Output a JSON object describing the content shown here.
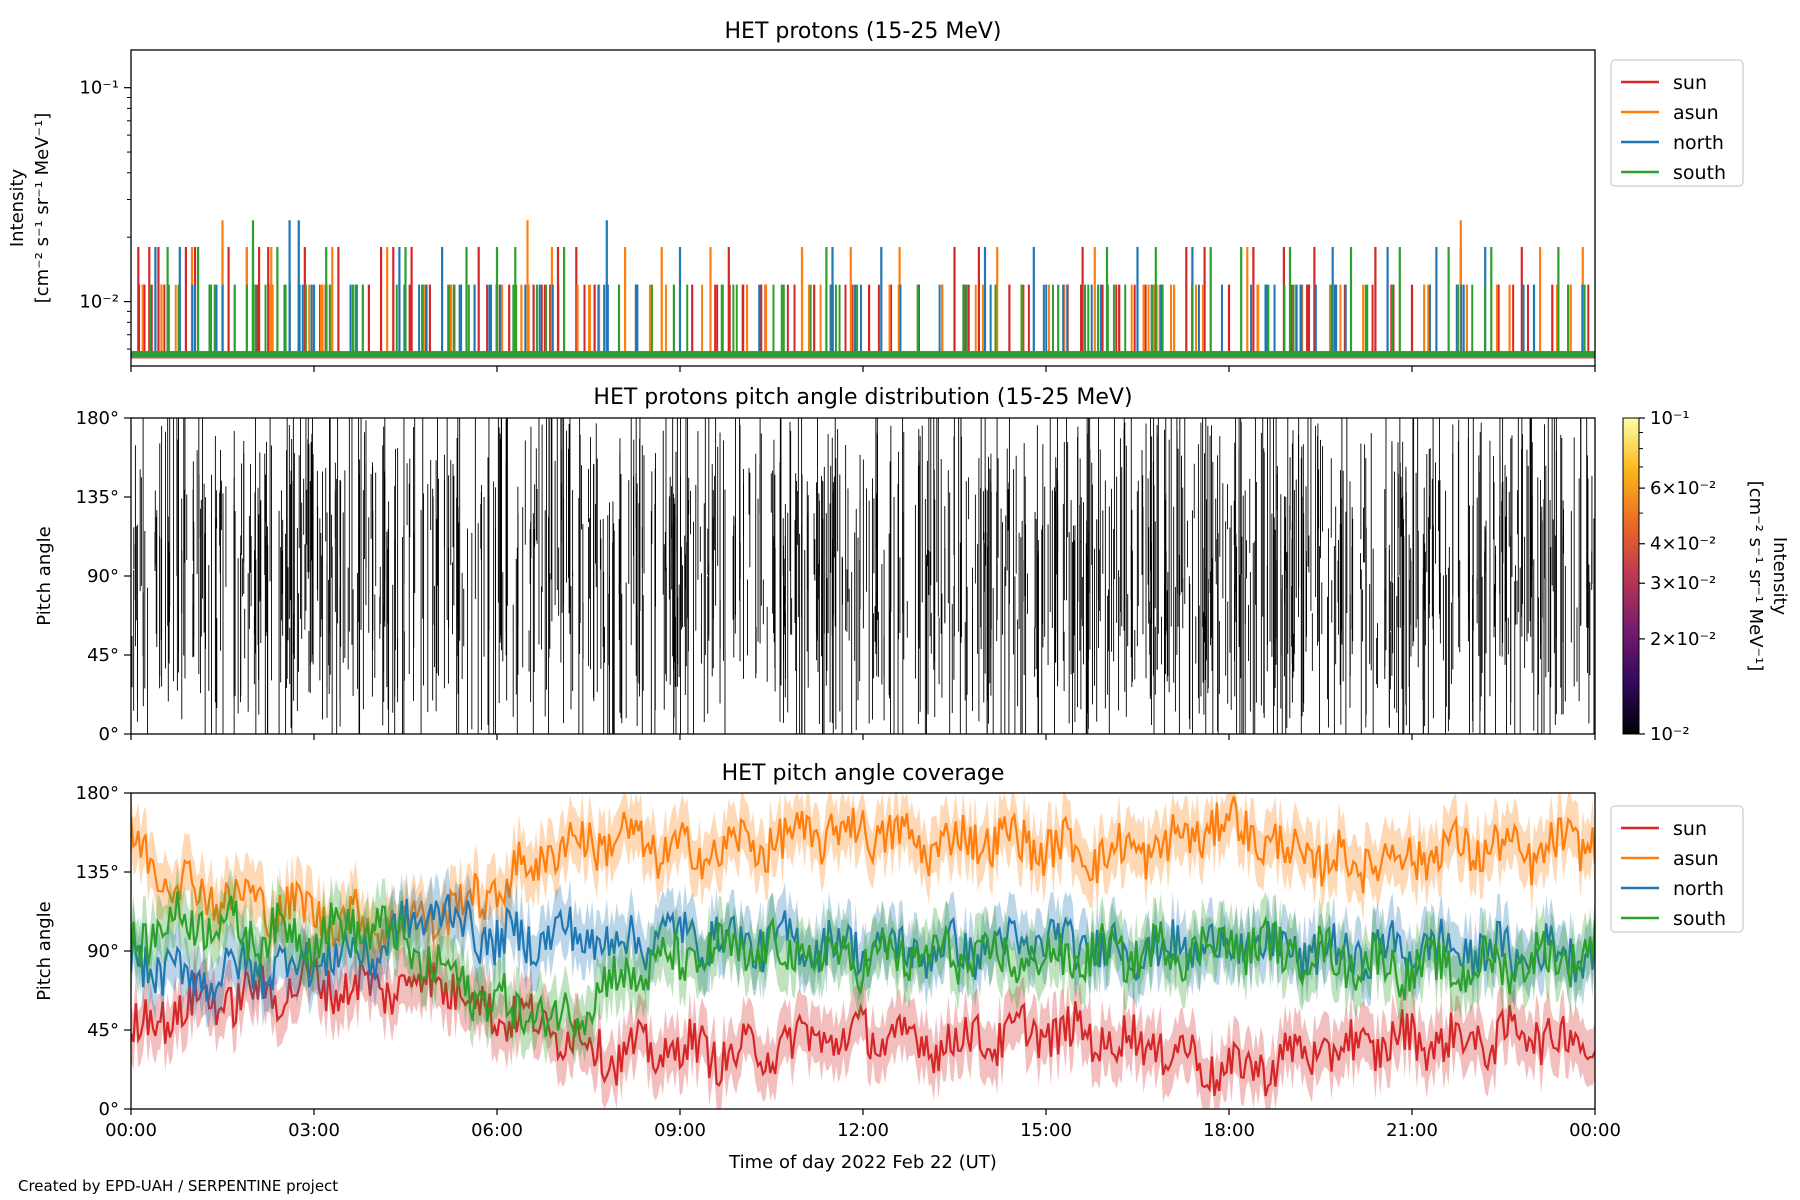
{
  "credit": "Created by EPD-UAH / SERPENTINE project",
  "chart_data": [
    {
      "type": "line",
      "title": "HET protons (15-25 MeV)",
      "ylabel": [
        "Intensity",
        "[cm⁻² s⁻¹ sr⁻¹ MeV⁻¹]"
      ],
      "yscale": "log",
      "ylim": [
        0.005,
        0.15
      ],
      "ytick_labels": [
        "10⁻¹",
        "10⁻²"
      ],
      "ytick_values": [
        0.1,
        0.01
      ],
      "x_range_hours": [
        0,
        24
      ],
      "legend": "right, outside top",
      "series": [
        {
          "name": "sun",
          "color": "#d62728",
          "baseline": 0.0056,
          "spike_levels": [
            0.012,
            0.018
          ],
          "spikes_h": [
            0.12,
            0.22,
            0.3,
            0.45,
            0.9,
            1.05,
            1.3,
            1.6,
            1.9,
            2.1,
            2.25,
            2.6,
            2.85,
            3.1,
            3.4,
            3.7,
            3.9,
            4.1,
            4.3,
            4.6,
            4.9,
            5.3,
            5.7,
            6.0,
            6.2,
            6.6,
            7.0,
            7.3,
            7.6,
            9.2,
            9.8,
            10.4,
            11.2,
            12.1,
            12.9,
            13.5,
            13.9,
            14.4,
            15.6,
            16.2,
            16.9,
            17.3,
            17.6,
            18.0,
            18.4,
            18.9,
            19.4,
            19.9,
            20.4,
            21.0,
            21.8,
            22.4,
            22.8,
            23.3,
            23.6
          ]
        },
        {
          "name": "asun",
          "color": "#ff7f0e",
          "baseline": 0.0056,
          "spike_levels": [
            0.012,
            0.018,
            0.024
          ],
          "spikes_h": [
            0.5,
            1.0,
            1.5,
            1.9,
            2.3,
            3.3,
            4.2,
            4.8,
            5.4,
            6.4,
            6.9,
            8.1,
            8.7,
            9.5,
            10.1,
            11.0,
            11.8,
            12.6,
            13.3,
            14.2,
            15.3,
            15.8,
            16.6,
            17.1,
            18.3,
            19.1,
            20.2,
            21.2,
            21.9,
            22.6,
            23.1,
            23.8
          ],
          "tall_h": [
            1.5,
            6.5,
            21.8
          ]
        },
        {
          "name": "north",
          "color": "#1f77b4",
          "baseline": 0.0056,
          "spike_levels": [
            0.012,
            0.018,
            0.024
          ],
          "spikes_h": [
            0.4,
            0.8,
            1.4,
            2.0,
            2.6,
            2.75,
            3.0,
            3.6,
            4.4,
            5.1,
            5.9,
            6.7,
            7.8,
            8.3,
            9.0,
            10.3,
            11.5,
            12.3,
            14.0,
            14.8,
            15.9,
            16.5,
            17.4,
            18.6,
            19.7,
            20.6,
            21.4,
            22.2,
            23.0
          ],
          "tall_h": [
            2.6,
            2.75,
            7.8
          ]
        },
        {
          "name": "south",
          "color": "#2ca02c",
          "baseline": 0.0056,
          "spike_levels": [
            0.012,
            0.018,
            0.024
          ],
          "spikes_h": [
            0.6,
            1.1,
            1.7,
            2.0,
            2.4,
            3.2,
            3.8,
            4.5,
            5.5,
            6.0,
            6.3,
            7.1,
            8.0,
            8.9,
            9.7,
            10.7,
            11.4,
            12.9,
            13.7,
            14.6,
            15.2,
            16.0,
            16.8,
            17.7,
            18.2,
            19.0,
            20.0,
            20.8,
            21.6,
            22.3,
            23.4
          ],
          "tall_h": [
            2.0
          ]
        }
      ]
    },
    {
      "type": "heatmap",
      "title": "HET protons pitch angle distribution (15-25 MeV)",
      "ylabel": "Pitch angle",
      "ylim": [
        0,
        180
      ],
      "ytick_labels": [
        "180°",
        "135°",
        "90°",
        "45°",
        "0°"
      ],
      "ytick_values": [
        180,
        135,
        90,
        45,
        0
      ],
      "colorbar": {
        "scale": "log",
        "range": [
          0.01,
          0.1
        ],
        "colormap": [
          "#000004",
          "#320a5e",
          "#781c6d",
          "#bc3754",
          "#ed6925",
          "#fbb61a",
          "#fcffa4"
        ],
        "tick_labels": [
          "10⁻¹",
          "6×10⁻²",
          "4×10⁻²",
          "3×10⁻²",
          "2×10⁻²",
          "10⁻²"
        ],
        "tick_values": [
          0.1,
          0.06,
          0.04,
          0.03,
          0.02,
          0.01
        ],
        "label": [
          "Intensity",
          "[cm⁻² s⁻¹ sr⁻¹ MeV⁻¹]"
        ]
      },
      "description_values": "sparse near-zero intensity traces as vertical black strokes across 0-180 degrees"
    },
    {
      "type": "line",
      "title": "HET pitch angle coverage",
      "ylabel": "Pitch angle",
      "ylim": [
        0,
        180
      ],
      "ytick_labels": [
        "180°",
        "135°",
        "90°",
        "45°",
        "0°"
      ],
      "ytick_values": [
        180,
        135,
        90,
        45,
        0
      ],
      "xlabel": "Time of day 2022 Feb 22 (UT)",
      "xtick_labels": [
        "00:00",
        "03:00",
        "06:00",
        "09:00",
        "12:00",
        "15:00",
        "18:00",
        "21:00",
        "00:00"
      ],
      "xtick_hours": [
        0,
        3,
        6,
        9,
        12,
        15,
        18,
        21,
        24
      ],
      "legend": "right, outside top",
      "series": [
        {
          "name": "sun",
          "color": "#d62728",
          "x_h": [
            0,
            1,
            2,
            3,
            4,
            5,
            6,
            7,
            8,
            9,
            10,
            11,
            12,
            13,
            14,
            15,
            16,
            17,
            18,
            19,
            20,
            21,
            22,
            23,
            24
          ],
          "values": [
            45,
            60,
            65,
            72,
            68,
            75,
            55,
            45,
            30,
            35,
            30,
            40,
            42,
            38,
            40,
            45,
            40,
            35,
            20,
            30,
            35,
            40,
            38,
            45,
            35
          ]
        },
        {
          "name": "asun",
          "color": "#ff7f0e",
          "x_h": [
            0,
            1,
            2,
            3,
            4,
            5,
            6,
            7,
            8,
            9,
            10,
            11,
            12,
            13,
            14,
            15,
            16,
            17,
            18,
            19,
            20,
            21,
            22,
            23,
            24
          ],
          "values": [
            150,
            125,
            118,
            112,
            105,
            110,
            125,
            150,
            155,
            145,
            150,
            155,
            160,
            150,
            155,
            150,
            145,
            150,
            165,
            145,
            140,
            145,
            150,
            145,
            155
          ]
        },
        {
          "name": "north",
          "color": "#1f77b4",
          "x_h": [
            0,
            1,
            2,
            3,
            4,
            5,
            6,
            7,
            8,
            9,
            10,
            11,
            12,
            13,
            14,
            15,
            16,
            17,
            18,
            19,
            20,
            21,
            22,
            23,
            24
          ],
          "values": [
            85,
            75,
            80,
            85,
            90,
            115,
            95,
            100,
            95,
            100,
            95,
            95,
            92,
            90,
            92,
            95,
            92,
            90,
            95,
            90,
            88,
            92,
            90,
            88,
            92
          ]
        },
        {
          "name": "south",
          "color": "#2ca02c",
          "x_h": [
            0,
            1,
            2,
            3,
            4,
            5,
            6,
            7,
            8,
            9,
            10,
            11,
            12,
            13,
            14,
            15,
            16,
            17,
            18,
            19,
            20,
            21,
            22,
            23,
            24
          ],
          "values": [
            95,
            110,
            100,
            100,
            105,
            80,
            60,
            50,
            75,
            85,
            90,
            88,
            85,
            88,
            85,
            85,
            88,
            90,
            95,
            90,
            85,
            80,
            80,
            85,
            90
          ]
        }
      ]
    }
  ]
}
